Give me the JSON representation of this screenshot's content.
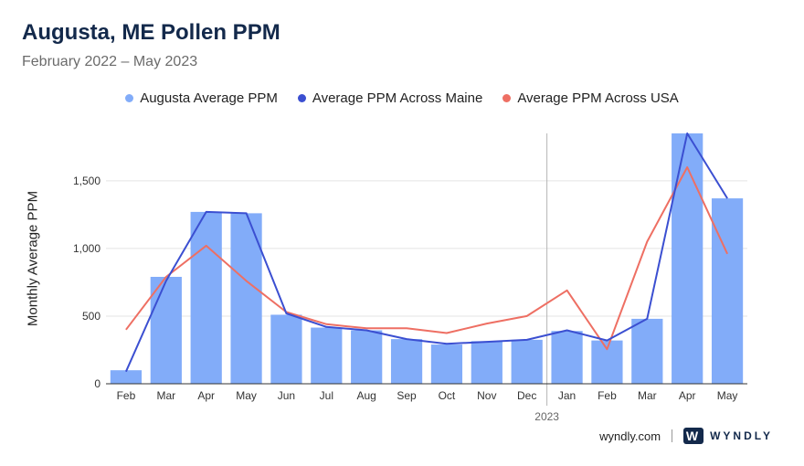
{
  "chart_data": {
    "type": "bar",
    "title": "Augusta, ME Pollen PPM",
    "subtitle": "February 2022 – May 2023",
    "ylabel": "Monthly Average PPM",
    "xlabel": "",
    "ylim": [
      0,
      1850
    ],
    "yticks": [
      0,
      500,
      1000,
      1500
    ],
    "ytick_labels": [
      "0",
      "500",
      "1,000",
      "1,500"
    ],
    "categories": [
      "Feb",
      "Mar",
      "Apr",
      "May",
      "Jun",
      "Jul",
      "Aug",
      "Sep",
      "Oct",
      "Nov",
      "Dec",
      "Jan",
      "Feb",
      "Mar",
      "Apr",
      "May"
    ],
    "year_marker": {
      "label": "2023",
      "before_index": 11
    },
    "series": [
      {
        "name": "Augusta Average PPM",
        "type": "bar",
        "color": "#82acf9",
        "values": [
          100,
          790,
          1270,
          1260,
          510,
          415,
          395,
          330,
          290,
          315,
          325,
          390,
          320,
          480,
          1850,
          1370
        ]
      },
      {
        "name": "Average PPM Across Maine",
        "type": "line",
        "color": "#3b4fd1",
        "values": [
          90,
          760,
          1270,
          1260,
          520,
          420,
          395,
          330,
          295,
          310,
          325,
          395,
          320,
          480,
          1850,
          1370
        ]
      },
      {
        "name": "Average PPM Across USA",
        "type": "line",
        "color": "#ee6f63",
        "values": [
          400,
          790,
          1020,
          760,
          530,
          440,
          410,
          410,
          375,
          445,
          500,
          690,
          255,
          1050,
          1600,
          960
        ]
      }
    ]
  },
  "footer": {
    "site": "wyndly.com",
    "brand": "WYNDLY",
    "logo_letter": "W"
  }
}
